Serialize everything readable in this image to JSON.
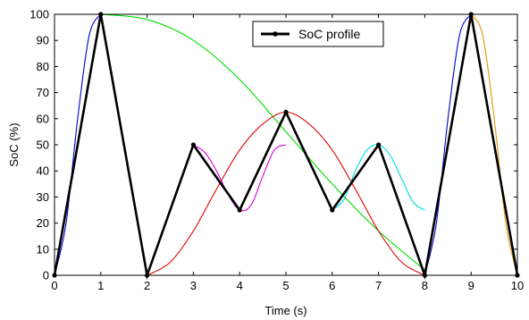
{
  "chart_data": {
    "type": "line",
    "title": "",
    "xlabel": "Time (s)",
    "ylabel": "SoC (%)",
    "xlim": [
      0,
      10
    ],
    "ylim": [
      0,
      100
    ],
    "xticks": [
      "0",
      "1",
      "2",
      "3",
      "4",
      "5",
      "6",
      "7",
      "8",
      "9",
      "10"
    ],
    "yticks": [
      "0",
      "10",
      "20",
      "30",
      "40",
      "50",
      "60",
      "70",
      "80",
      "90",
      "100"
    ],
    "grid": false,
    "legend": {
      "placement": "top-center",
      "entries": [
        "SoC profile"
      ]
    },
    "series": [
      {
        "name": "SoC profile",
        "color": "#000000",
        "marker": "dot",
        "x": [
          0,
          1,
          2,
          3,
          4,
          5,
          6,
          7,
          8,
          9,
          10
        ],
        "y": [
          0,
          100,
          0,
          50,
          25,
          62.5,
          25,
          50,
          0,
          100,
          0
        ]
      }
    ],
    "curves": [
      {
        "color": "#0000cc",
        "x": [
          0,
          0.25,
          0.5,
          0.75,
          1.0
        ],
        "y": [
          0,
          20,
          60,
          92,
          100
        ]
      },
      {
        "color": "#00dd00",
        "x": [
          1,
          2,
          3,
          4,
          5,
          6,
          7,
          8
        ],
        "y": [
          100,
          98,
          90,
          75,
          55,
          35,
          17,
          2
        ]
      },
      {
        "color": "#dd0000",
        "x": [
          2,
          2.5,
          3,
          3.5,
          4,
          4.5,
          5,
          5.5,
          6,
          6.5,
          7,
          7.5,
          8
        ],
        "y": [
          0,
          5,
          17,
          33,
          48,
          58,
          62.5,
          58,
          48,
          33,
          17,
          5,
          0
        ]
      },
      {
        "color": "#dd00dd",
        "x": [
          3,
          3.25,
          3.5,
          3.75,
          4,
          4.25,
          4.5,
          4.75,
          5
        ],
        "y": [
          50,
          47,
          40,
          31,
          25,
          27,
          38,
          48,
          50
        ]
      },
      {
        "color": "#00dddd",
        "x": [
          6,
          6.25,
          6.5,
          6.75,
          7,
          7.25,
          7.5,
          7.75,
          8
        ],
        "y": [
          25,
          29,
          40,
          48,
          50,
          46,
          37,
          28,
          25
        ]
      },
      {
        "color": "#0000cc",
        "x": [
          8,
          8.25,
          8.5,
          8.75,
          9
        ],
        "y": [
          0,
          20,
          60,
          92,
          100
        ]
      },
      {
        "color": "#e69500",
        "x": [
          9,
          9.25,
          9.5,
          9.75,
          10
        ],
        "y": [
          100,
          92,
          60,
          20,
          0
        ]
      }
    ]
  }
}
